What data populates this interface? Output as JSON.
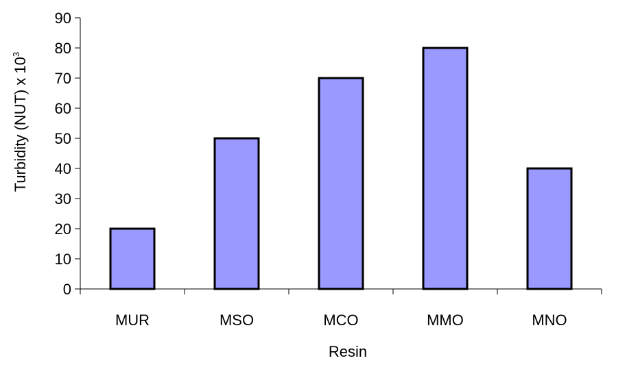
{
  "chart_data": {
    "type": "bar",
    "categories": [
      "MUR",
      "MSO",
      "MCO",
      "MMO",
      "MNO"
    ],
    "values": [
      20,
      50,
      70,
      80,
      40
    ],
    "title": "",
    "xlabel": "Resin",
    "ylabel": "Turbidity  (NUT) x 10",
    "ylabel_superscript": "3",
    "ylim": [
      0,
      90
    ],
    "yticks": [
      "0",
      "10",
      "20",
      "30",
      "40",
      "50",
      "60",
      "70",
      "80",
      "90"
    ],
    "grid": false,
    "legend": "none",
    "colors": {
      "bar_fill": "#9999ff",
      "bar_stroke": "#000000",
      "axis": "#000000"
    }
  }
}
